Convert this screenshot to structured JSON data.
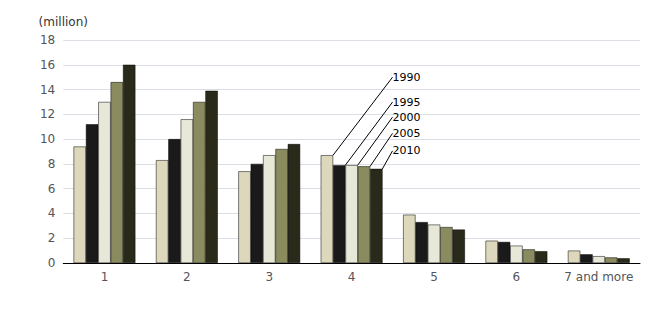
{
  "chart_data": {
    "type": "bar",
    "ylabel": "(million)",
    "categories": [
      "1",
      "2",
      "3",
      "4",
      "5",
      "6",
      "7 and more"
    ],
    "series": [
      {
        "name": "1990",
        "color": "#ddd8bc",
        "values": [
          9.4,
          8.3,
          7.4,
          8.7,
          3.9,
          1.8,
          1.0
        ]
      },
      {
        "name": "1995",
        "color": "#1a1a1a",
        "values": [
          11.2,
          10.0,
          8.0,
          7.9,
          3.3,
          1.7,
          0.7
        ]
      },
      {
        "name": "2000",
        "color": "#e8e8d8",
        "values": [
          13.0,
          11.6,
          8.7,
          7.9,
          3.1,
          1.4,
          0.55
        ]
      },
      {
        "name": "2005",
        "color": "#8b8b60",
        "values": [
          14.6,
          13.0,
          9.2,
          7.8,
          2.9,
          1.1,
          0.45
        ]
      },
      {
        "name": "2010",
        "color": "#2a2a1a",
        "values": [
          16.0,
          13.9,
          9.6,
          7.6,
          2.7,
          0.95,
          0.38
        ]
      }
    ],
    "ylim": [
      0,
      18
    ],
    "yticks": [
      0,
      2,
      4,
      6,
      8,
      10,
      12,
      14,
      16,
      18
    ],
    "grid": true,
    "annotations": [
      {
        "text": "1990",
        "series": "1990",
        "category": "4"
      },
      {
        "text": "1995",
        "series": "1995",
        "category": "4"
      },
      {
        "text": "2000",
        "series": "2000",
        "category": "4"
      },
      {
        "text": "2005",
        "series": "2005",
        "category": "4"
      },
      {
        "text": "2010",
        "series": "2010",
        "category": "4"
      }
    ]
  }
}
